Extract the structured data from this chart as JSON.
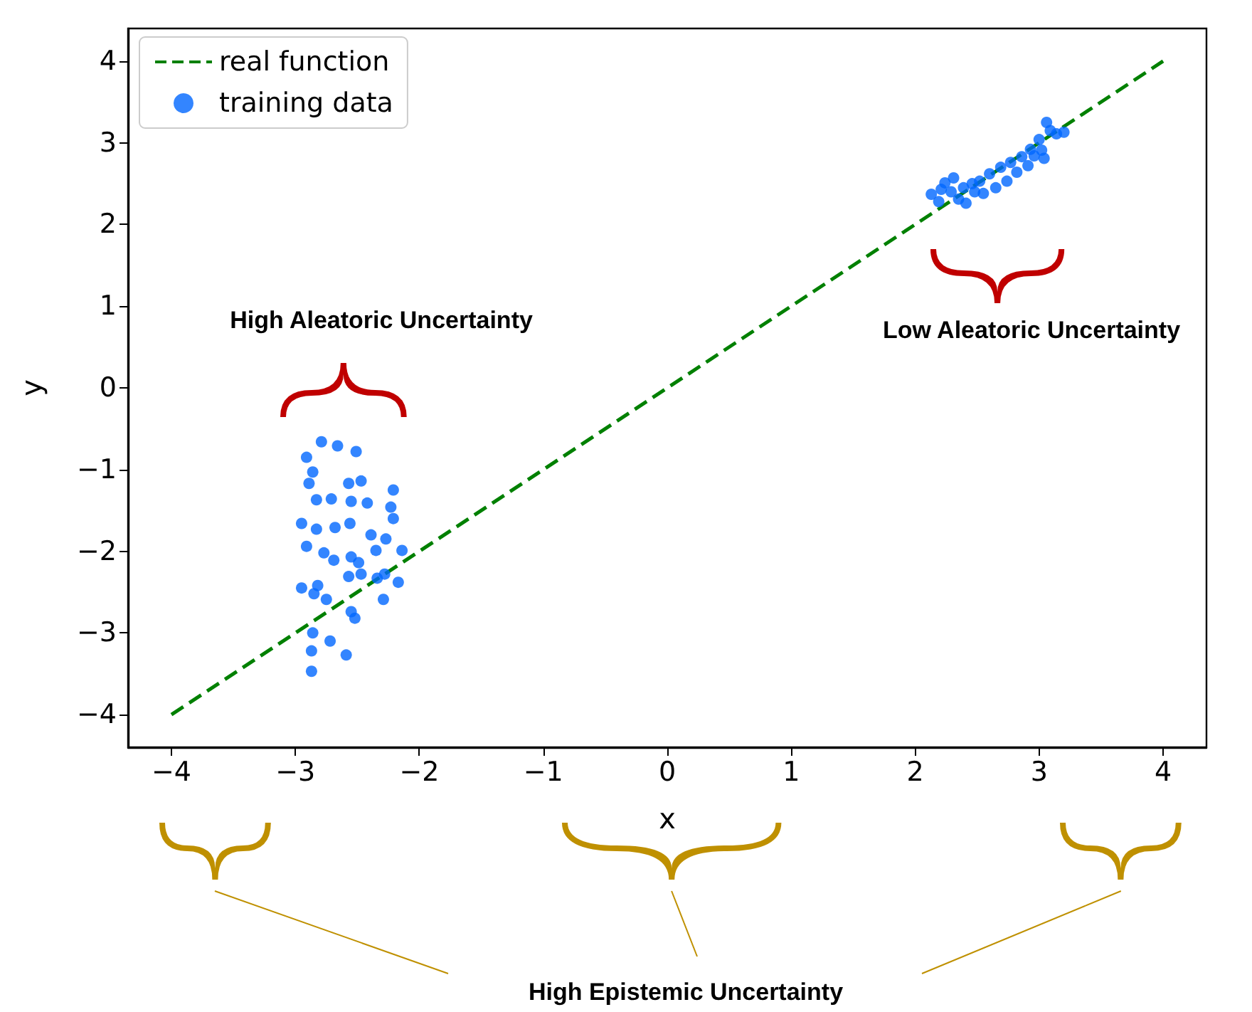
{
  "chart_data": {
    "type": "scatter",
    "xlabel": "x",
    "ylabel": "y",
    "xlim": [
      -4.35,
      4.35
    ],
    "ylim": [
      -4.4,
      4.4
    ],
    "xticks": [
      -4,
      -3,
      -2,
      -1,
      0,
      1,
      2,
      3,
      4
    ],
    "yticks": [
      -4,
      -3,
      -2,
      -1,
      0,
      1,
      2,
      3,
      4
    ],
    "grid": false,
    "legend": "top left",
    "marker": "circle",
    "series": [
      {
        "name": "real function",
        "type": "line",
        "line_style": "dashed",
        "marker": "none",
        "color": "#008000",
        "x": [
          -4,
          4
        ],
        "values": [
          -4,
          4
        ]
      },
      {
        "name": "training data",
        "color": "#0066ff",
        "x": [
          -2.79,
          -2.66,
          -2.91,
          -2.51,
          -2.89,
          -2.86,
          -2.57,
          -2.47,
          -2.21,
          -2.83,
          -2.71,
          -2.55,
          -2.42,
          -2.23,
          -2.21,
          -2.95,
          -2.83,
          -2.68,
          -2.56,
          -2.39,
          -2.27,
          -2.91,
          -2.77,
          -2.69,
          -2.55,
          -2.49,
          -2.35,
          -2.14,
          -2.95,
          -2.82,
          -2.75,
          -2.85,
          -2.57,
          -2.47,
          -2.34,
          -2.28,
          -2.17,
          -2.29,
          -2.52,
          -2.55,
          -2.86,
          -2.87,
          -2.72,
          -2.87,
          -2.59,
          2.13,
          2.21,
          2.19,
          2.29,
          2.35,
          2.39,
          2.46,
          2.41,
          2.52,
          2.55,
          2.6,
          2.65,
          2.69,
          2.74,
          2.77,
          2.82,
          2.86,
          2.91,
          2.93,
          2.96,
          3.0,
          3.02,
          3.06,
          3.09,
          3.14,
          3.2,
          3.04,
          2.48,
          2.24,
          2.31
        ],
        "values": [
          -0.66,
          -0.71,
          -0.85,
          -0.78,
          -1.17,
          -1.03,
          -1.17,
          -1.14,
          -1.25,
          -1.37,
          -1.36,
          -1.39,
          -1.41,
          -1.46,
          -1.6,
          -1.66,
          -1.73,
          -1.71,
          -1.66,
          -1.8,
          -1.85,
          -1.94,
          -2.02,
          -2.11,
          -2.07,
          -2.14,
          -1.99,
          -1.99,
          -2.45,
          -2.42,
          -2.59,
          -2.52,
          -2.31,
          -2.28,
          -2.33,
          -2.28,
          -2.38,
          -2.59,
          -2.82,
          -2.74,
          -3.0,
          -3.22,
          -3.1,
          -3.47,
          -3.27,
          2.37,
          2.43,
          2.28,
          2.4,
          2.31,
          2.45,
          2.5,
          2.26,
          2.53,
          2.38,
          2.62,
          2.45,
          2.7,
          2.53,
          2.76,
          2.64,
          2.83,
          2.72,
          2.92,
          2.84,
          3.04,
          2.91,
          3.25,
          3.15,
          3.11,
          3.13,
          2.81,
          2.4,
          2.51,
          2.57
        ]
      }
    ],
    "annotations": [
      "High Aleatoric Uncertainty",
      "Low Aleatoric Uncertainty",
      "High Epistemic Uncertainty"
    ]
  }
}
